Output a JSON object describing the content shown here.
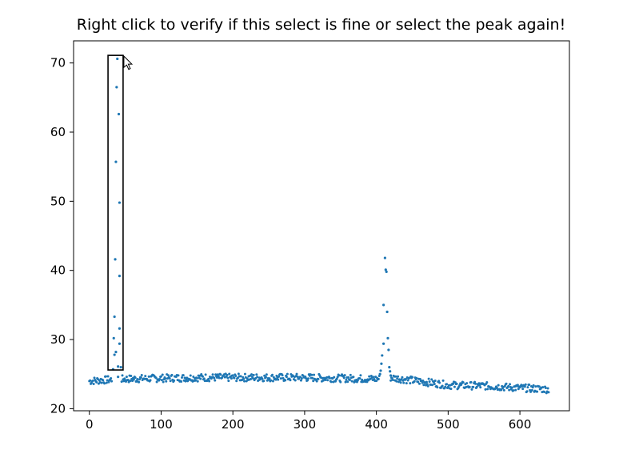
{
  "chart_data": {
    "type": "scatter",
    "title": "Right click to verify if this select is fine or select the peak again!",
    "xlim": [
      -22,
      669
    ],
    "ylim": [
      19.7,
      73.2
    ],
    "x_ticks": [
      0,
      100,
      200,
      300,
      400,
      500,
      600
    ],
    "y_ticks": [
      20,
      30,
      40,
      50,
      60,
      70
    ],
    "grid": false,
    "marker_color": "#1f77b4",
    "series": [
      {
        "points": [
          [
            33,
            25.7
          ],
          [
            35,
            27.8
          ],
          [
            35,
            33.3
          ],
          [
            34,
            30.2
          ],
          [
            36,
            41.6
          ],
          [
            37,
            28.2
          ],
          [
            37,
            55.7
          ],
          [
            38,
            66.5
          ],
          [
            39,
            70.6
          ],
          [
            41,
            62.6
          ],
          [
            42,
            49.8
          ],
          [
            42,
            31.6
          ],
          [
            42,
            39.2
          ],
          [
            42,
            29.4
          ],
          [
            44,
            26.0
          ],
          [
            40,
            24.6
          ],
          [
            40,
            26.1
          ],
          [
            405,
            25.0
          ],
          [
            406,
            25.5
          ],
          [
            407,
            26.5
          ],
          [
            408,
            27.7
          ],
          [
            410,
            29.4
          ],
          [
            410,
            35.0
          ],
          [
            412,
            41.8
          ],
          [
            413,
            40.1
          ],
          [
            414,
            39.8
          ],
          [
            415,
            34.0
          ],
          [
            416,
            30.2
          ],
          [
            417,
            28.5
          ],
          [
            418,
            26.0
          ],
          [
            419,
            25.4
          ],
          [
            420,
            24.8
          ]
        ],
        "baseline": [
          [
            0,
            24.0
          ],
          [
            30,
            24.2
          ],
          [
            50,
            24.3
          ],
          [
            100,
            24.4
          ],
          [
            150,
            24.5
          ],
          [
            200,
            24.5
          ],
          [
            250,
            24.5
          ],
          [
            300,
            24.5
          ],
          [
            350,
            24.4
          ],
          [
            400,
            24.3
          ],
          [
            420,
            24.5
          ],
          [
            450,
            24.1
          ],
          [
            480,
            23.7
          ],
          [
            500,
            23.4
          ],
          [
            550,
            23.3
          ],
          [
            600,
            23.0
          ],
          [
            640,
            22.8
          ]
        ]
      }
    ],
    "selection_box": {
      "x": [
        26,
        47
      ],
      "y": [
        25.6,
        71.1
      ]
    }
  }
}
